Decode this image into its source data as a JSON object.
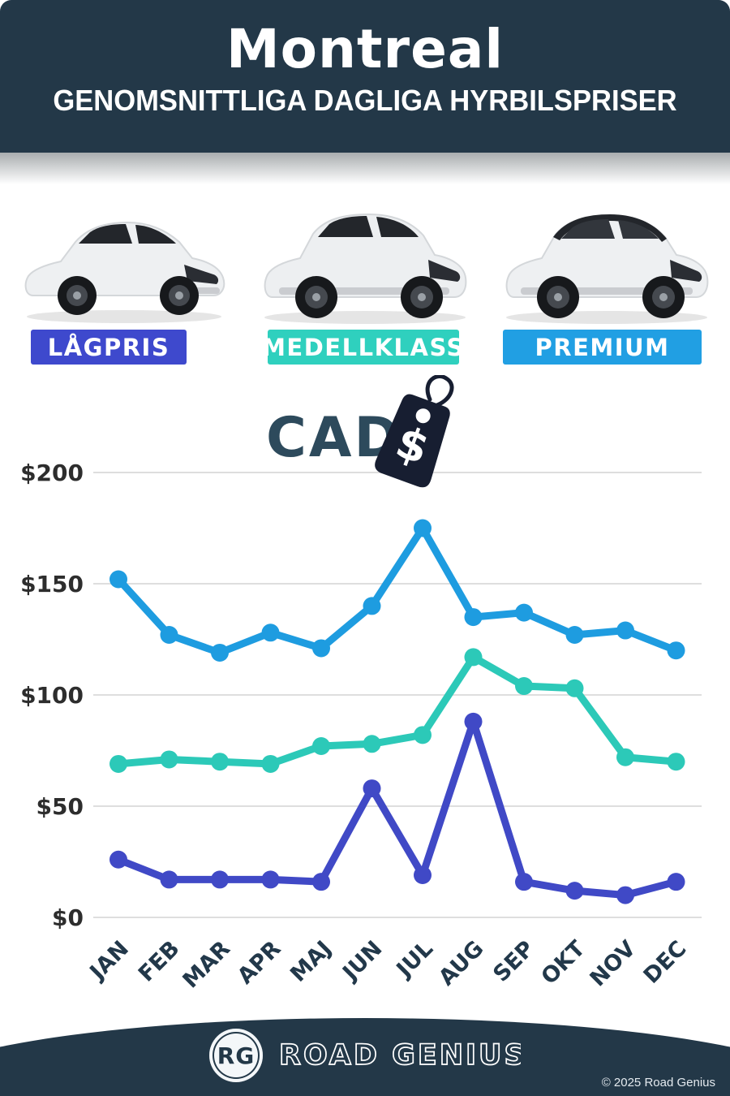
{
  "header": {
    "title": "Montreal",
    "subtitle": "GENOMSNITTLIGA DAGLIGA HYRBILSPRISER",
    "background_color": "#233848"
  },
  "categories": [
    {
      "label": "LÅGPRIS",
      "color": "#3e49cd"
    },
    {
      "label": "MEDELLKLASS",
      "color": "#2fd0be"
    },
    {
      "label": "PREMIUM",
      "color": "#219fe3"
    }
  ],
  "currency": {
    "label": "CAD",
    "tag_symbol": "$",
    "text_color": "#2d4a5c",
    "tag_color": "#171e31"
  },
  "chart_data": {
    "type": "line",
    "title": "Genomsnittliga dagliga hyrbilspriser i Montreal (CAD)",
    "categories": [
      "JAN",
      "FEB",
      "MAR",
      "APR",
      "MAJ",
      "JUN",
      "JUL",
      "AUG",
      "SEP",
      "OKT",
      "NOV",
      "DEC"
    ],
    "series": [
      {
        "name": "PREMIUM",
        "color": "#1e9ce0",
        "values": [
          152,
          127,
          119,
          128,
          121,
          140,
          175,
          135,
          137,
          127,
          129,
          120
        ]
      },
      {
        "name": "MEDELLKLASS",
        "color": "#2cc9b8",
        "values": [
          69,
          71,
          70,
          69,
          77,
          78,
          82,
          117,
          104,
          103,
          72,
          70
        ]
      },
      {
        "name": "LÅGPRIS",
        "color": "#4049c6",
        "values": [
          26,
          17,
          17,
          17,
          16,
          58,
          19,
          88,
          16,
          12,
          10,
          16
        ]
      }
    ],
    "ylim": [
      0,
      200
    ],
    "y_ticks": [
      {
        "value": 0,
        "label": "$0"
      },
      {
        "value": 50,
        "label": "$50"
      },
      {
        "value": 100,
        "label": "$100"
      },
      {
        "value": 150,
        "label": "$150"
      },
      {
        "value": 200,
        "label": "$200"
      }
    ],
    "grid": true,
    "legend_position": "none",
    "axis_label_color": "#22384a",
    "tick_label_color": "#2d2d2d",
    "gridline_color": "#dedede"
  },
  "footer": {
    "logo_initials": "RG",
    "brand": "ROAD GENIUS",
    "copyright": "© 2025 Road Genius"
  }
}
